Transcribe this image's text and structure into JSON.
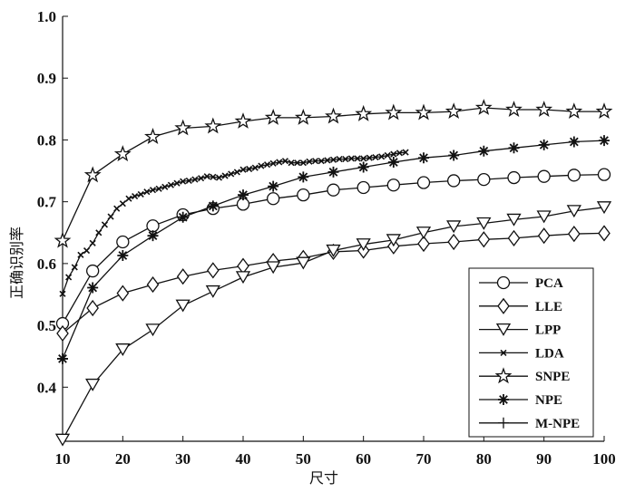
{
  "chart_data": {
    "type": "line",
    "title": "",
    "xlabel": "尺寸",
    "ylabel": "正确识别率",
    "xlim": [
      10,
      100
    ],
    "ylim": [
      0.3125,
      1.0
    ],
    "xticks": [
      "10",
      "20",
      "30",
      "40",
      "50",
      "60",
      "70",
      "80",
      "90",
      "100"
    ],
    "yticks": [
      "0.4",
      "0.5",
      "0.6",
      "0.7",
      "0.8",
      "0.9",
      "1.0"
    ],
    "grid": false,
    "legend_position": "bottom-right",
    "series": [
      {
        "name": "PCA",
        "marker": "circle",
        "x": [
          10,
          15,
          20,
          25,
          30,
          35,
          40,
          45,
          50,
          55,
          60,
          65,
          70,
          75,
          80,
          85,
          90,
          95,
          100
        ],
        "y": [
          0.503,
          0.588,
          0.635,
          0.661,
          0.679,
          0.689,
          0.696,
          0.705,
          0.711,
          0.719,
          0.723,
          0.727,
          0.731,
          0.734,
          0.736,
          0.739,
          0.741,
          0.743,
          0.744
        ]
      },
      {
        "name": "LLE",
        "marker": "diamond",
        "x": [
          10,
          15,
          20,
          25,
          30,
          35,
          40,
          45,
          50,
          55,
          60,
          65,
          70,
          75,
          80,
          85,
          90,
          95,
          100
        ],
        "y": [
          0.487,
          0.528,
          0.552,
          0.566,
          0.579,
          0.589,
          0.596,
          0.604,
          0.609,
          0.619,
          0.621,
          0.628,
          0.632,
          0.635,
          0.639,
          0.641,
          0.645,
          0.648,
          0.649
        ]
      },
      {
        "name": "LPP",
        "marker": "triangle-down",
        "x": [
          10,
          15,
          20,
          25,
          30,
          35,
          40,
          45,
          50,
          55,
          60,
          65,
          70,
          75,
          80,
          85,
          90,
          95,
          100
        ],
        "y": [
          0.315,
          0.404,
          0.461,
          0.493,
          0.532,
          0.555,
          0.578,
          0.594,
          0.601,
          0.621,
          0.631,
          0.638,
          0.65,
          0.66,
          0.665,
          0.671,
          0.676,
          0.685,
          0.691
        ]
      },
      {
        "name": "LDA",
        "marker": "x",
        "x": [
          10,
          11,
          12,
          13,
          14,
          15,
          16,
          17,
          18,
          19,
          20,
          21,
          22,
          23,
          24,
          25,
          26,
          27,
          28,
          29,
          30,
          31,
          32,
          33,
          34,
          35,
          36,
          37,
          38,
          39,
          40,
          41,
          42,
          43,
          44,
          45,
          46,
          47,
          48,
          49,
          50,
          51,
          52,
          53,
          54,
          55,
          56,
          57,
          58,
          59,
          60,
          61,
          62,
          63,
          64,
          65,
          66,
          67
        ],
        "y": [
          0.551,
          0.578,
          0.594,
          0.614,
          0.621,
          0.633,
          0.65,
          0.663,
          0.676,
          0.689,
          0.697,
          0.705,
          0.709,
          0.712,
          0.716,
          0.719,
          0.721,
          0.724,
          0.727,
          0.73,
          0.733,
          0.734,
          0.736,
          0.738,
          0.741,
          0.74,
          0.739,
          0.742,
          0.745,
          0.748,
          0.752,
          0.753,
          0.755,
          0.758,
          0.76,
          0.762,
          0.764,
          0.766,
          0.763,
          0.763,
          0.763,
          0.765,
          0.766,
          0.766,
          0.767,
          0.768,
          0.769,
          0.769,
          0.77,
          0.77,
          0.77,
          0.771,
          0.772,
          0.773,
          0.775,
          0.777,
          0.779,
          0.78
        ]
      },
      {
        "name": "SNPE",
        "marker": "star",
        "x": [
          10,
          15,
          20,
          25,
          30,
          35,
          40,
          45,
          50,
          55,
          60,
          65,
          70,
          75,
          80,
          85,
          90,
          95,
          100
        ],
        "y": [
          0.637,
          0.743,
          0.777,
          0.805,
          0.819,
          0.822,
          0.83,
          0.836,
          0.836,
          0.838,
          0.842,
          0.844,
          0.844,
          0.846,
          0.852,
          0.849,
          0.849,
          0.846,
          0.846
        ]
      },
      {
        "name": "NPE",
        "marker": "asterisk",
        "x": [
          10,
          15,
          20,
          25,
          30,
          35,
          40,
          45,
          50,
          55,
          60,
          65,
          70,
          75,
          80,
          85,
          90,
          95,
          100
        ],
        "y": [
          0.446,
          0.561,
          0.613,
          0.645,
          0.675,
          0.693,
          0.711,
          0.725,
          0.74,
          0.748,
          0.756,
          0.764,
          0.771,
          0.775,
          0.782,
          0.787,
          0.792,
          0.797,
          0.799
        ]
      },
      {
        "name": "M-NPE",
        "marker": "plus",
        "x": [],
        "y": []
      }
    ]
  }
}
